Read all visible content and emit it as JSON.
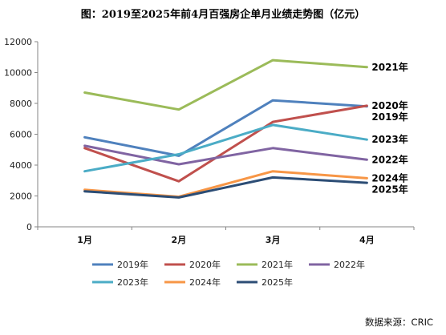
{
  "chart_data": {
    "type": "line",
    "title": "图：2019至2025年前4月百强房企单月业绩走势图（亿元）",
    "categories": [
      "1月",
      "2月",
      "3月",
      "4月"
    ],
    "ylim": [
      0,
      12000
    ],
    "yticks": [
      0,
      2000,
      4000,
      6000,
      8000,
      10000,
      12000
    ],
    "grid": false,
    "legend_position": "bottom",
    "source": "数据来源：CRIC",
    "series": [
      {
        "name": "2019年",
        "color": "#4f81bd",
        "values": [
          5800,
          4600,
          8200,
          7800
        ]
      },
      {
        "name": "2020年",
        "color": "#c0504d",
        "values": [
          5100,
          2950,
          6800,
          7850
        ]
      },
      {
        "name": "2021年",
        "color": "#9bbb59",
        "values": [
          8700,
          7600,
          10800,
          10350
        ]
      },
      {
        "name": "2022年",
        "color": "#8064a2",
        "values": [
          5250,
          4050,
          5100,
          4350
        ]
      },
      {
        "name": "2023年",
        "color": "#4bacc6",
        "values": [
          3600,
          4700,
          6600,
          5650
        ]
      },
      {
        "name": "2024年",
        "color": "#f79646",
        "values": [
          2400,
          1950,
          3600,
          3150
        ]
      },
      {
        "name": "2025年",
        "color": "#2c4d75",
        "values": [
          2300,
          1900,
          3200,
          2850
        ]
      }
    ]
  }
}
